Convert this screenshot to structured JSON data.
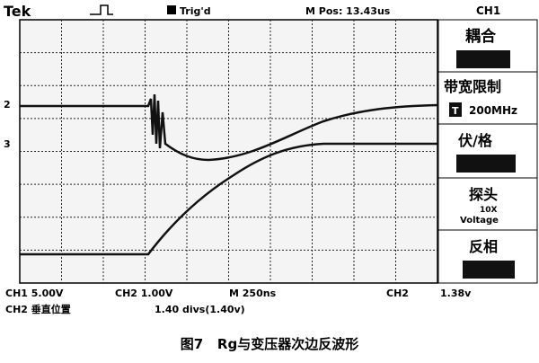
{
  "header": {
    "brand": "Tek",
    "trigger_status": "Trig'd",
    "m_pos": "M Pos: 13.43us"
  },
  "markers": {
    "ch2": "2",
    "ch3": "3"
  },
  "menu": {
    "channel": "CH1",
    "coupling": "耦合",
    "bandwidth": "带宽限制",
    "bandwidth_icon": "T",
    "bandwidth_value": "200MHz",
    "volts_div": "伏/格",
    "probe": "探头",
    "probe_value": "10X",
    "probe_type": "Voltage",
    "invert": "反相"
  },
  "footer": {
    "ch1_scale": "CH1 5.00V",
    "ch2_scale": "CH2 1.00V",
    "time_scale": "M 250ns",
    "trigger_source": "CH2",
    "trigger_level": "1.38v",
    "position_label": "CH2 垂直位置",
    "position_value": "1.40 divs(1.40v)"
  },
  "caption": "图7   Rg与变压器次边反波形"
}
